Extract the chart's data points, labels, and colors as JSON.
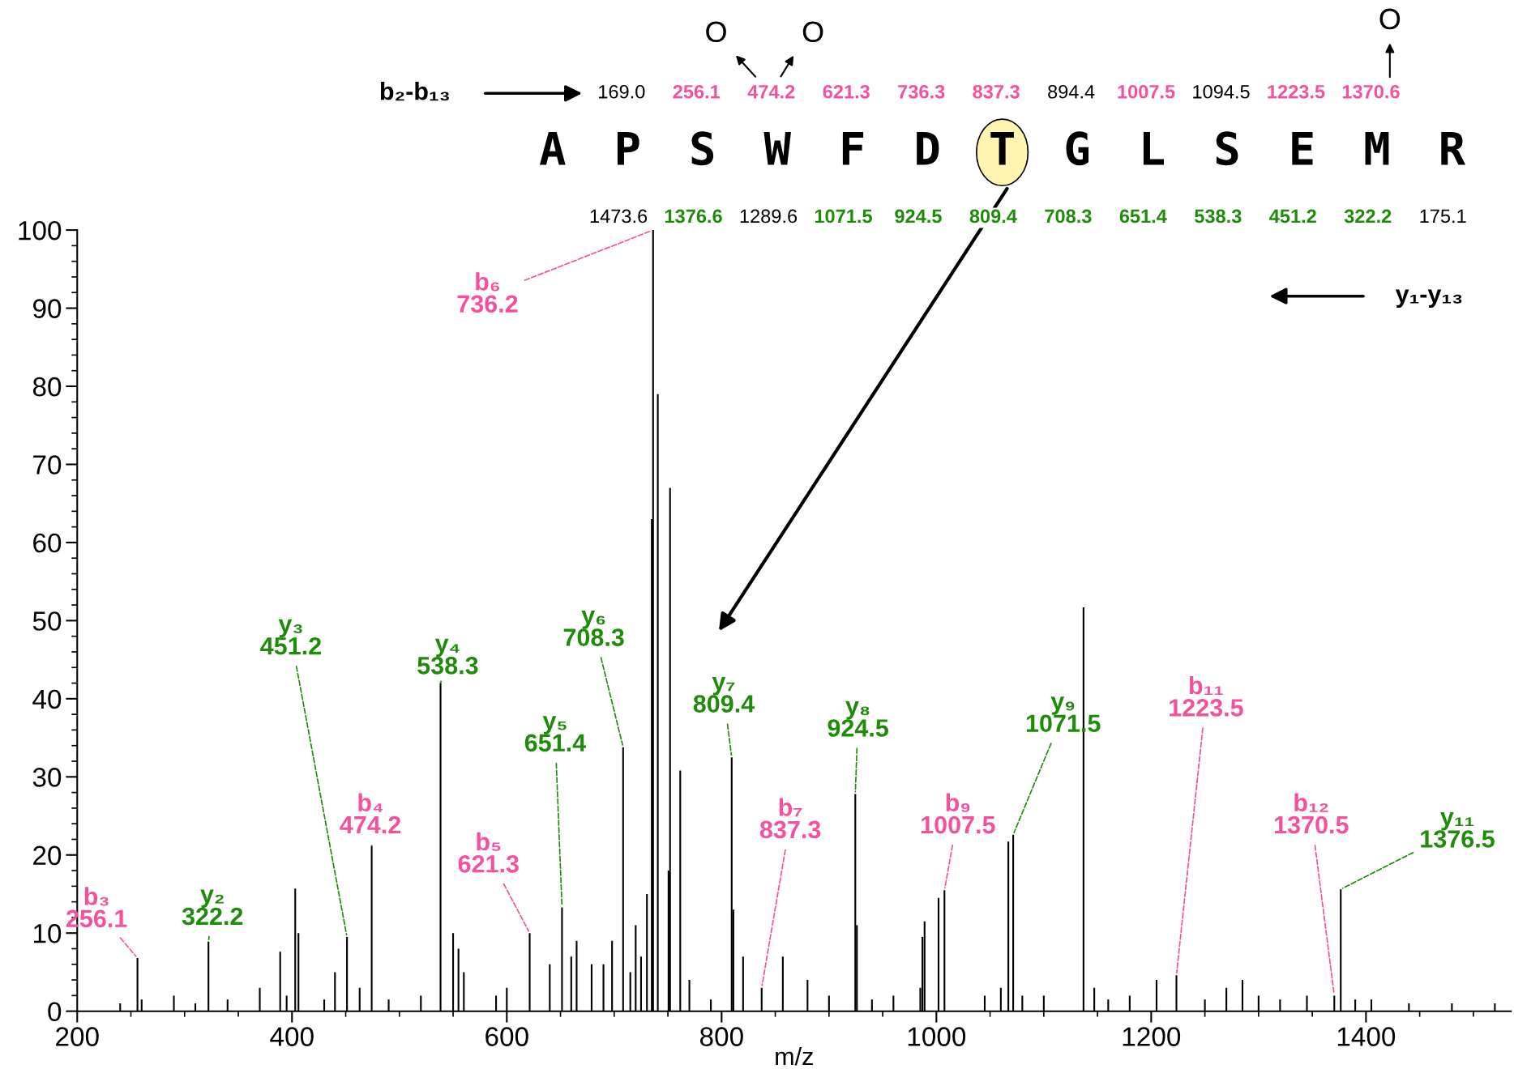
{
  "chart_data": {
    "type": "bar",
    "xlabel": "m/z",
    "xlim": [
      200,
      1535
    ],
    "ylim": [
      0,
      100
    ],
    "xticks": [
      200,
      400,
      600,
      800,
      1000,
      1200,
      1400
    ],
    "yticks": [
      0,
      10,
      20,
      30,
      40,
      50,
      60,
      70,
      80,
      90,
      100
    ],
    "grid": false,
    "x": [
      240,
      256.1,
      260,
      290,
      310,
      322.2,
      340,
      370,
      389,
      395,
      403,
      406,
      430,
      440,
      451.2,
      463,
      474.2,
      490,
      520,
      538.3,
      550,
      555,
      560,
      590,
      600,
      621.3,
      640,
      651.4,
      660,
      665,
      679,
      690,
      698,
      708.3,
      715,
      720,
      725,
      730.5,
      735,
      736.2,
      740.6,
      750.6,
      752,
      761.5,
      770,
      790,
      809.4,
      811,
      820,
      837.3,
      857,
      880,
      900,
      924.5,
      926,
      940,
      960,
      985,
      987,
      989,
      1002,
      1007.5,
      1045,
      1060,
      1067,
      1071.5,
      1080,
      1100,
      1137,
      1147,
      1160,
      1180,
      1205,
      1223.5,
      1250,
      1270,
      1285,
      1300,
      1320,
      1345,
      1370.5,
      1376.5,
      1390,
      1405,
      1440,
      1480,
      1520
    ],
    "series": [
      {
        "color": "#000000",
        "values": [
          1,
          6.8,
          1.5,
          2,
          1,
          8.9,
          1.5,
          3,
          7.6,
          2,
          15.7,
          10,
          1.5,
          5,
          9.5,
          3,
          21.2,
          1.5,
          2,
          42,
          10,
          8,
          5,
          2,
          3,
          10,
          6,
          13.3,
          7,
          9,
          6,
          6,
          9,
          33.8,
          5,
          11,
          7,
          15,
          63,
          100,
          79,
          18,
          67,
          30.8,
          4,
          1.5,
          32.5,
          13,
          7,
          3,
          7,
          4,
          2,
          27.8,
          11,
          1.5,
          2,
          3,
          9.5,
          11.5,
          14.5,
          15.5,
          2,
          3,
          21.7,
          22.6,
          2,
          2,
          51.7,
          3,
          1.5,
          2,
          4,
          4.6,
          1.5,
          3,
          4,
          2,
          1.5,
          2,
          2,
          15.6,
          1.5,
          1.5,
          1,
          1,
          1
        ]
      }
    ],
    "annotations": [
      "b₂-b₁₃",
      "y₁-y₁₃",
      "APSWFDTGLSEMR",
      "169.0",
      "256.1",
      "474.2",
      "621.3",
      "736.3",
      "837.3",
      "894.4",
      "1007.5",
      "1094.5",
      "1223.5",
      "1370.6",
      "1473.6",
      "1376.6",
      "1289.6",
      "1071.5",
      "924.5",
      "809.4",
      "708.3",
      "651.4",
      "538.3",
      "451.2",
      "322.2",
      "175.1",
      "O",
      "O",
      "O",
      {
        "text": "b₃\n256.1",
        "x": 256.1,
        "y": 6.8
      },
      {
        "text": "y₂\n322.2",
        "x": 322.2,
        "y": 8.9
      },
      {
        "text": "y₃\n451.2",
        "x": 451.2,
        "y": 9.5
      },
      {
        "text": "b₄\n474.2",
        "x": 474.2,
        "y": 21.2
      },
      {
        "text": "y₄\n538.3",
        "x": 538.3,
        "y": 42
      },
      {
        "text": "b₅\n621.3",
        "x": 621.3,
        "y": 10
      },
      {
        "text": "y₅\n651.4",
        "x": 651.4,
        "y": 13.3
      },
      {
        "text": "y₆\n708.3",
        "x": 708.3,
        "y": 33.8
      },
      {
        "text": "b₆\n736.2",
        "x": 736.2,
        "y": 100
      },
      {
        "text": "y₇\n809.4",
        "x": 809.4,
        "y": 32.5
      },
      {
        "text": "b₇\n837.3",
        "x": 837.3,
        "y": 3
      },
      {
        "text": "y₈\n924.5",
        "x": 924.5,
        "y": 27.8
      },
      {
        "text": "b₉\n1007.5",
        "x": 1007.5,
        "y": 15.5
      },
      {
        "text": "y₉\n1071.5",
        "x": 1071.5,
        "y": 22.6
      },
      {
        "text": "b₁₁\n1223.5",
        "x": 1223.5,
        "y": 4.6
      },
      {
        "text": "b₁₂\n1370.5",
        "x": 1370.5,
        "y": 2
      },
      {
        "text": "y₁₁\n1376.5",
        "x": 1376.5,
        "y": 15.6
      }
    ]
  }
}
